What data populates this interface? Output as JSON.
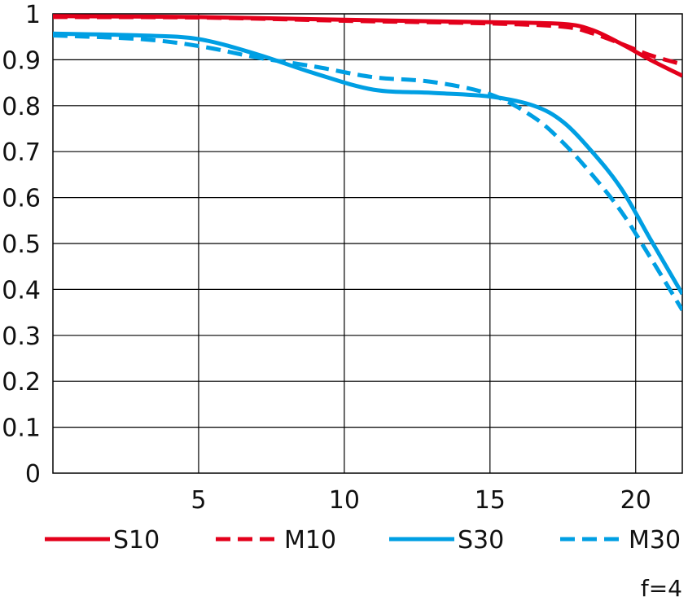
{
  "chart_data": {
    "type": "line",
    "xlim": [
      0,
      21.6
    ],
    "ylim": [
      0,
      1
    ],
    "xticks": [
      5,
      10,
      15,
      20
    ],
    "yticks": [
      0,
      0.1,
      0.2,
      0.3,
      0.4,
      0.5,
      0.6,
      0.7,
      0.8,
      0.9,
      1
    ],
    "ytick_labels": [
      "0",
      "0.1",
      "0.2",
      "0.3",
      "0.4",
      "0.5",
      "0.6",
      "0.7",
      "0.8",
      "0.9",
      "1"
    ],
    "xtick_labels": [
      "5",
      "10",
      "15",
      "20"
    ],
    "grid": true,
    "legend_position": "bottom",
    "note": "f=4",
    "series": [
      {
        "name": "S10",
        "color": "#e3001b",
        "dash": "solid",
        "points": [
          [
            0,
            0.995
          ],
          [
            5,
            0.993
          ],
          [
            10,
            0.987
          ],
          [
            15,
            0.982
          ],
          [
            17.5,
            0.978
          ],
          [
            18.5,
            0.965
          ],
          [
            19.5,
            0.935
          ],
          [
            20.5,
            0.9
          ],
          [
            21.6,
            0.865
          ]
        ]
      },
      {
        "name": "M10",
        "color": "#e3001b",
        "dash": "dashed",
        "points": [
          [
            0,
            0.993
          ],
          [
            5,
            0.992
          ],
          [
            10,
            0.985
          ],
          [
            15,
            0.979
          ],
          [
            17.5,
            0.972
          ],
          [
            18.5,
            0.958
          ],
          [
            19.5,
            0.935
          ],
          [
            20.5,
            0.91
          ],
          [
            21.6,
            0.89
          ]
        ]
      },
      {
        "name": "S30",
        "color": "#009fe3",
        "dash": "solid",
        "points": [
          [
            0,
            0.957
          ],
          [
            3,
            0.953
          ],
          [
            5,
            0.945
          ],
          [
            7,
            0.912
          ],
          [
            9,
            0.87
          ],
          [
            11,
            0.835
          ],
          [
            13,
            0.828
          ],
          [
            15,
            0.82
          ],
          [
            16.5,
            0.8
          ],
          [
            17.5,
            0.765
          ],
          [
            18.5,
            0.7
          ],
          [
            19.5,
            0.62
          ],
          [
            20.5,
            0.51
          ],
          [
            21.6,
            0.39
          ]
        ]
      },
      {
        "name": "M30",
        "color": "#009fe3",
        "dash": "dashed",
        "points": [
          [
            0,
            0.953
          ],
          [
            3,
            0.945
          ],
          [
            5,
            0.93
          ],
          [
            7,
            0.905
          ],
          [
            9,
            0.885
          ],
          [
            11,
            0.862
          ],
          [
            13,
            0.852
          ],
          [
            15,
            0.825
          ],
          [
            16.5,
            0.775
          ],
          [
            17.5,
            0.72
          ],
          [
            18.5,
            0.65
          ],
          [
            19.5,
            0.57
          ],
          [
            20.5,
            0.47
          ],
          [
            21.6,
            0.355
          ]
        ]
      }
    ]
  }
}
